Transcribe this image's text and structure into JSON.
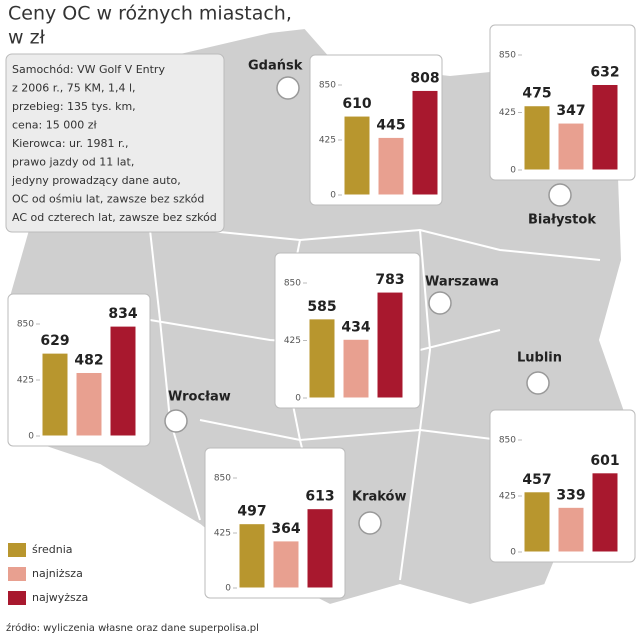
{
  "title": [
    "Ceny OC w różnych miastach,",
    "w zł"
  ],
  "note": [
    "Samochód: VW Golf V Entry",
    "z 2006 r., 75 KM, 1,4 l,",
    "przebieg: 135 tys. km,",
    "cena: 15 000 zł",
    "Kierowca: ur. 1981 r.,",
    "prawo jazdy od 11 lat,",
    "jedyny prowadzący dane auto,",
    "OC od ośmiu lat, zawsze bez szkód",
    "AC od czterech lat, zawsze bez szkód"
  ],
  "legend": [
    {
      "name": "średnia",
      "color": "#b8962e"
    },
    {
      "name": "najniższa",
      "color": "#e8a090"
    },
    {
      "name": "najwyższa",
      "color": "#a8182e"
    }
  ],
  "source": "źródło: wyliczenia własne oraz dane superpolisa.pl",
  "chart_data": [
    {
      "type": "bar",
      "title": "Gdańsk",
      "values": [
        610,
        445,
        808
      ],
      "ylim": [
        0,
        850
      ],
      "yticks": [
        0,
        425,
        850
      ]
    },
    {
      "type": "bar",
      "title": "Białystok",
      "values": [
        475,
        347,
        632
      ],
      "ylim": [
        0,
        850
      ],
      "yticks": [
        0,
        425,
        850
      ]
    },
    {
      "type": "bar",
      "title": "Warszawa",
      "values": [
        585,
        434,
        783
      ],
      "ylim": [
        0,
        850
      ],
      "yticks": [
        0,
        425,
        850
      ]
    },
    {
      "type": "bar",
      "title": "Wrocław",
      "values": [
        629,
        482,
        834
      ],
      "ylim": [
        0,
        850
      ],
      "yticks": [
        0,
        425,
        850
      ]
    },
    {
      "type": "bar",
      "title": "Lublin",
      "values": [
        457,
        339,
        601
      ],
      "ylim": [
        0,
        850
      ],
      "yticks": [
        0,
        425,
        850
      ]
    },
    {
      "type": "bar",
      "title": "Kraków",
      "values": [
        497,
        364,
        613
      ],
      "ylim": [
        0,
        850
      ],
      "yticks": [
        0,
        425,
        850
      ]
    }
  ]
}
